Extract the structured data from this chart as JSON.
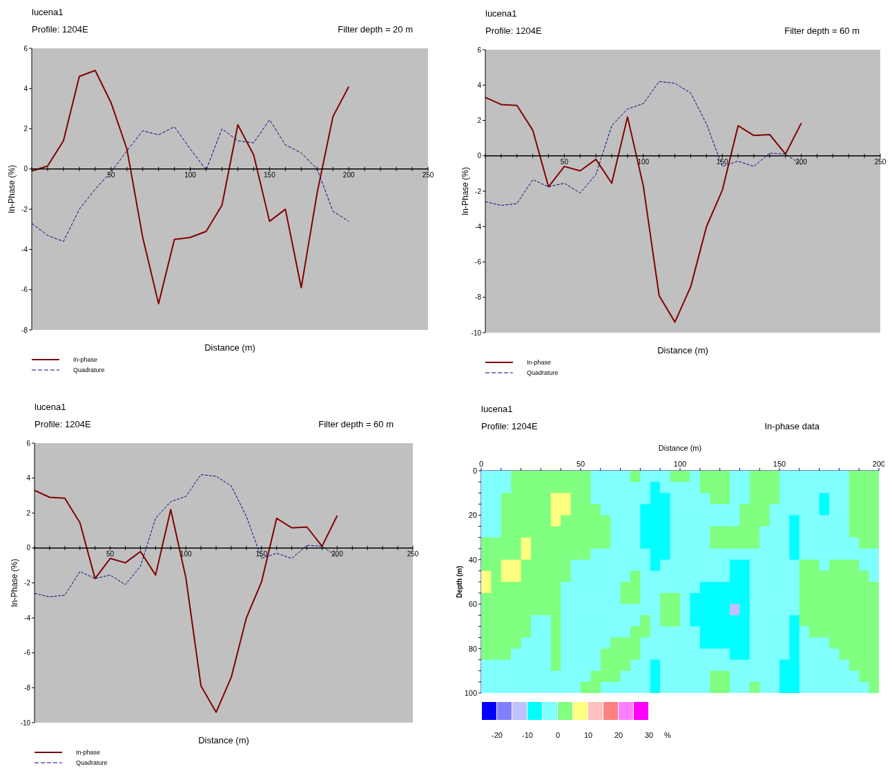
{
  "chart_data": [
    {
      "type": "line",
      "title": "lucena1",
      "subtitle": "Profile: 1204E",
      "annotations": [
        "Filter depth = 20 m"
      ],
      "xlabel": "Distance (m)",
      "ylabel": "In-Phase (%)",
      "legend": "bottom left",
      "x": [
        0,
        10,
        20,
        30,
        40,
        50,
        60,
        70,
        80,
        90,
        100,
        110,
        120,
        130,
        140,
        150,
        160,
        170,
        180,
        190,
        200
      ],
      "series": [
        {
          "name": "In-phase",
          "color": "#800000",
          "line_style": "solid",
          "values": [
            -0.1,
            0.15,
            1.4,
            4.6,
            4.9,
            3.3,
            1.0,
            -3.4,
            -6.7,
            -3.5,
            -3.4,
            -3.1,
            -1.8,
            2.2,
            0.7,
            -2.6,
            -2.0,
            -5.9,
            -1.2,
            2.6,
            4.1
          ]
        },
        {
          "name": "Quadrature",
          "color": "#000080",
          "line_style": "dashed",
          "values": [
            -2.7,
            -3.3,
            -3.6,
            -2.0,
            -1.0,
            -0.15,
            0.9,
            1.9,
            1.7,
            2.1,
            1.0,
            -0.05,
            2.0,
            1.4,
            1.3,
            2.45,
            1.2,
            0.8,
            0.0,
            -2.1,
            -2.6
          ]
        }
      ],
      "xlim": [
        0,
        250
      ],
      "xticks": [
        {
          "value": 0,
          "label": null
        },
        {
          "value": 10,
          "label": null
        },
        {
          "value": 20,
          "label": null
        },
        {
          "value": 30,
          "label": null
        },
        {
          "value": 40,
          "label": null
        },
        50,
        {
          "value": 60,
          "label": null
        },
        {
          "value": 70,
          "label": null
        },
        {
          "value": 80,
          "label": null
        },
        {
          "value": 90,
          "label": null
        },
        100,
        {
          "value": 110,
          "label": null
        },
        {
          "value": 120,
          "label": null
        },
        {
          "value": 130,
          "label": null
        },
        {
          "value": 140,
          "label": null
        },
        150,
        {
          "value": 160,
          "label": null
        },
        {
          "value": 170,
          "label": null
        },
        {
          "value": 180,
          "label": null
        },
        {
          "value": 190,
          "label": null
        },
        200,
        {
          "value": 210,
          "label": null
        },
        {
          "value": 220,
          "label": null
        },
        {
          "value": 230,
          "label": null
        },
        {
          "value": 240,
          "label": null
        },
        250
      ],
      "ylim": [
        -8,
        6
      ],
      "yticks": [
        -8,
        -6,
        -4,
        -2,
        0,
        2,
        4,
        6
      ]
    },
    {
      "type": "line",
      "title": "lucena1",
      "subtitle": "Profile: 1204E",
      "annotations": [
        "Filter depth = 60 m"
      ],
      "xlabel": "Distance (m)",
      "ylabel": "In-Phase (%)",
      "legend": "bottom left",
      "x": [
        0,
        10,
        20,
        30,
        40,
        50,
        60,
        70,
        80,
        90,
        100,
        110,
        120,
        130,
        140,
        150,
        160,
        170,
        180,
        190,
        200
      ],
      "series": [
        {
          "name": "In-phase",
          "color": "#800000",
          "line_style": "solid",
          "values": [
            3.3,
            2.9,
            2.85,
            1.45,
            -1.75,
            -0.6,
            -0.85,
            -0.2,
            -1.55,
            2.2,
            -1.7,
            -7.9,
            -9.4,
            -7.4,
            -4.0,
            -1.95,
            1.7,
            1.15,
            1.2,
            0.1,
            1.85
          ]
        },
        {
          "name": "Quadrature",
          "color": "#000080",
          "line_style": "dashed",
          "values": [
            -2.6,
            -2.8,
            -2.7,
            -1.35,
            -1.75,
            -1.55,
            -2.1,
            -1.05,
            1.7,
            2.65,
            2.95,
            4.2,
            4.1,
            3.55,
            1.8,
            -0.6,
            -0.3,
            -0.6,
            0.15,
            0.1,
            -0.5
          ]
        }
      ],
      "xlim": [
        0,
        250
      ],
      "xticks": [
        {
          "value": 0,
          "label": null
        },
        {
          "value": 10,
          "label": null
        },
        {
          "value": 20,
          "label": null
        },
        {
          "value": 30,
          "label": null
        },
        {
          "value": 40,
          "label": null
        },
        50,
        {
          "value": 60,
          "label": null
        },
        {
          "value": 70,
          "label": null
        },
        {
          "value": 80,
          "label": null
        },
        {
          "value": 90,
          "label": null
        },
        100,
        {
          "value": 110,
          "label": null
        },
        {
          "value": 120,
          "label": null
        },
        {
          "value": 130,
          "label": null
        },
        {
          "value": 140,
          "label": null
        },
        150,
        {
          "value": 160,
          "label": null
        },
        {
          "value": 170,
          "label": null
        },
        {
          "value": 180,
          "label": null
        },
        {
          "value": 190,
          "label": null
        },
        200,
        {
          "value": 210,
          "label": null
        },
        {
          "value": 220,
          "label": null
        },
        {
          "value": 230,
          "label": null
        },
        {
          "value": 240,
          "label": null
        },
        250
      ],
      "ylim": [
        -10,
        6
      ],
      "yticks": [
        -10,
        -8,
        -6,
        -4,
        -2,
        0,
        2,
        4,
        6
      ]
    },
    {
      "type": "line",
      "title": "lucena1",
      "subtitle": "Profile: 1204E",
      "annotations": [
        "Filter depth = 60 m"
      ],
      "xlabel": "Distance (m)",
      "ylabel": "In-Phase (%)",
      "legend": "bottom left",
      "x": [
        0,
        10,
        20,
        30,
        40,
        50,
        60,
        70,
        80,
        90,
        100,
        110,
        120,
        130,
        140,
        150,
        160,
        170,
        180,
        190,
        200
      ],
      "series": [
        {
          "name": "In-phase",
          "color": "#800000",
          "line_style": "solid",
          "values": [
            3.3,
            2.9,
            2.85,
            1.45,
            -1.75,
            -0.6,
            -0.85,
            -0.2,
            -1.55,
            2.2,
            -1.7,
            -7.9,
            -9.4,
            -7.4,
            -4.0,
            -1.95,
            1.7,
            1.15,
            1.2,
            0.1,
            1.85
          ]
        },
        {
          "name": "Quadrature",
          "color": "#000080",
          "line_style": "dashed",
          "values": [
            -2.6,
            -2.8,
            -2.7,
            -1.35,
            -1.75,
            -1.55,
            -2.1,
            -1.05,
            1.7,
            2.65,
            2.95,
            4.2,
            4.1,
            3.55,
            1.8,
            -0.6,
            -0.3,
            -0.6,
            0.15,
            0.1,
            -0.5
          ]
        }
      ],
      "xlim": [
        0,
        250
      ],
      "xticks": [
        {
          "value": 0,
          "label": null
        },
        {
          "value": 10,
          "label": null
        },
        {
          "value": 20,
          "label": null
        },
        {
          "value": 30,
          "label": null
        },
        {
          "value": 40,
          "label": null
        },
        50,
        {
          "value": 60,
          "label": null
        },
        {
          "value": 70,
          "label": null
        },
        {
          "value": 80,
          "label": null
        },
        {
          "value": 90,
          "label": null
        },
        100,
        {
          "value": 110,
          "label": null
        },
        {
          "value": 120,
          "label": null
        },
        {
          "value": 130,
          "label": null
        },
        {
          "value": 140,
          "label": null
        },
        150,
        {
          "value": 160,
          "label": null
        },
        {
          "value": 170,
          "label": null
        },
        {
          "value": 180,
          "label": null
        },
        {
          "value": 190,
          "label": null
        },
        200,
        {
          "value": 210,
          "label": null
        },
        {
          "value": 220,
          "label": null
        },
        {
          "value": 230,
          "label": null
        },
        {
          "value": 240,
          "label": null
        },
        250
      ],
      "ylim": [
        -10,
        6
      ],
      "yticks": [
        -10,
        -8,
        -6,
        -4,
        -2,
        0,
        2,
        4,
        6
      ]
    },
    {
      "type": "heatmap",
      "title": "lucena1",
      "subtitle": "Profile: 1204E",
      "annotations": [
        "In-phase data"
      ],
      "xlabel": "Distance (m)",
      "ylabel": "Depth (m)",
      "clabel": "%",
      "xlim": [
        0,
        200
      ],
      "xticks": [
        0,
        {
          "value": 10,
          "label": null
        },
        {
          "value": 20,
          "label": null
        },
        {
          "value": 30,
          "label": null
        },
        {
          "value": 40,
          "label": null
        },
        50,
        {
          "value": 60,
          "label": null
        },
        {
          "value": 70,
          "label": null
        },
        {
          "value": 80,
          "label": null
        },
        {
          "value": 90,
          "label": null
        },
        100,
        {
          "value": 110,
          "label": null
        },
        {
          "value": 120,
          "label": null
        },
        {
          "value": 130,
          "label": null
        },
        {
          "value": 140,
          "label": null
        },
        150,
        {
          "value": 160,
          "label": null
        },
        {
          "value": 170,
          "label": null
        },
        {
          "value": 180,
          "label": null
        },
        {
          "value": 190,
          "label": null
        },
        200
      ],
      "ylim": [
        100,
        0
      ],
      "yticks": [
        0,
        {
          "value": 5,
          "label": null
        },
        {
          "value": 10,
          "label": null
        },
        {
          "value": 15,
          "label": null
        },
        20,
        {
          "value": 25,
          "label": null
        },
        {
          "value": 30,
          "label": null
        },
        {
          "value": 35,
          "label": null
        },
        40,
        {
          "value": 45,
          "label": null
        },
        {
          "value": 50,
          "label": null
        },
        {
          "value": 55,
          "label": null
        },
        60,
        {
          "value": 65,
          "label": null
        },
        {
          "value": 70,
          "label": null
        },
        {
          "value": 75,
          "label": null
        },
        80,
        {
          "value": 85,
          "label": null
        },
        {
          "value": 90,
          "label": null
        },
        {
          "value": 95,
          "label": null
        },
        100
      ],
      "clim": [
        -25,
        30
      ],
      "cticks": [
        -20,
        -10,
        0,
        10,
        20,
        30
      ],
      "colors": [
        "#0000ff",
        "#8080ff",
        "#c0c0ff",
        "#00ffff",
        "#80ffff",
        "#80ff80",
        "#ffff80",
        "#ffc0c0",
        "#ff8080",
        "#ff80ff",
        "#ff00ff"
      ],
      "cells": [
        [
          -2.5,
          -2.5,
          -2.5,
          2.5,
          2.5,
          2.5,
          2.5,
          2.5,
          2.5,
          2.5,
          2.5,
          -2.5,
          -2.5,
          -2.5,
          -2.5,
          2.5,
          -2.5,
          -2.5,
          -2.5,
          2.5,
          2.5,
          -2.5,
          2.5,
          2.5,
          2.5,
          -2.5,
          -2.5,
          2.5,
          2.5,
          2.5,
          -2.5,
          -2.5,
          -2.5,
          -2.5,
          -2.5,
          -2.5,
          -2.5,
          2.5,
          2.5,
          2.5
        ],
        [
          -2.5,
          -2.5,
          -2.5,
          2.5,
          2.5,
          2.5,
          2.5,
          2.5,
          2.5,
          2.5,
          2.5,
          -2.5,
          -2.5,
          -2.5,
          -2.5,
          -2.5,
          -2.5,
          -7.5,
          -2.5,
          -2.5,
          -2.5,
          -2.5,
          2.5,
          2.5,
          2.5,
          -2.5,
          -2.5,
          2.5,
          2.5,
          2.5,
          -2.5,
          -2.5,
          -2.5,
          -2.5,
          -2.5,
          -2.5,
          -2.5,
          2.5,
          2.5,
          2.5
        ],
        [
          -2.5,
          -2.5,
          2.5,
          2.5,
          2.5,
          2.5,
          2.5,
          7.5,
          7.5,
          2.5,
          2.5,
          -2.5,
          -2.5,
          -2.5,
          -2.5,
          -2.5,
          -2.5,
          -7.5,
          -7.5,
          -2.5,
          -2.5,
          -2.5,
          -2.5,
          2.5,
          2.5,
          -2.5,
          -2.5,
          2.5,
          2.5,
          2.5,
          -2.5,
          -2.5,
          -2.5,
          -2.5,
          -7.5,
          -2.5,
          -2.5,
          2.5,
          2.5,
          2.5
        ],
        [
          -2.5,
          -2.5,
          2.5,
          2.5,
          2.5,
          2.5,
          2.5,
          7.5,
          7.5,
          2.5,
          2.5,
          2.5,
          -2.5,
          -2.5,
          -2.5,
          -2.5,
          -7.5,
          -7.5,
          -7.5,
          -2.5,
          -2.5,
          -2.5,
          -2.5,
          -2.5,
          -2.5,
          -2.5,
          2.5,
          2.5,
          2.5,
          -2.5,
          -2.5,
          -2.5,
          -2.5,
          -2.5,
          -7.5,
          -2.5,
          -2.5,
          2.5,
          2.5,
          2.5
        ],
        [
          -2.5,
          -2.5,
          2.5,
          2.5,
          2.5,
          2.5,
          2.5,
          7.5,
          2.5,
          2.5,
          2.5,
          2.5,
          2.5,
          -2.5,
          -2.5,
          -2.5,
          -7.5,
          -7.5,
          -7.5,
          -2.5,
          -2.5,
          -2.5,
          -2.5,
          -2.5,
          -2.5,
          -2.5,
          2.5,
          2.5,
          2.5,
          -2.5,
          -2.5,
          -7.5,
          -2.5,
          -2.5,
          -2.5,
          -2.5,
          -2.5,
          2.5,
          2.5,
          2.5
        ],
        [
          -2.5,
          -2.5,
          2.5,
          2.5,
          2.5,
          2.5,
          2.5,
          2.5,
          2.5,
          2.5,
          2.5,
          2.5,
          2.5,
          -2.5,
          -2.5,
          -2.5,
          -7.5,
          -7.5,
          -7.5,
          -2.5,
          -2.5,
          -2.5,
          -2.5,
          2.5,
          2.5,
          2.5,
          2.5,
          2.5,
          -2.5,
          -2.5,
          -2.5,
          -7.5,
          -2.5,
          -2.5,
          -2.5,
          -2.5,
          -2.5,
          2.5,
          2.5,
          2.5
        ],
        [
          2.5,
          2.5,
          2.5,
          2.5,
          7.5,
          2.5,
          2.5,
          2.5,
          2.5,
          2.5,
          2.5,
          2.5,
          2.5,
          -2.5,
          -2.5,
          -2.5,
          -7.5,
          -7.5,
          -7.5,
          -2.5,
          -2.5,
          -2.5,
          -2.5,
          2.5,
          2.5,
          2.5,
          2.5,
          2.5,
          -2.5,
          -2.5,
          -2.5,
          -7.5,
          -2.5,
          -2.5,
          -2.5,
          -2.5,
          -2.5,
          -2.5,
          2.5,
          2.5
        ],
        [
          2.5,
          2.5,
          2.5,
          2.5,
          7.5,
          2.5,
          2.5,
          2.5,
          2.5,
          2.5,
          2.5,
          -2.5,
          -2.5,
          -2.5,
          -2.5,
          -2.5,
          -2.5,
          -7.5,
          -7.5,
          -2.5,
          -2.5,
          -2.5,
          -2.5,
          -2.5,
          -2.5,
          -2.5,
          -2.5,
          -2.5,
          -2.5,
          -2.5,
          -2.5,
          -7.5,
          -2.5,
          -2.5,
          -2.5,
          -2.5,
          -2.5,
          -2.5,
          -2.5,
          -2.5
        ],
        [
          2.5,
          2.5,
          7.5,
          7.5,
          2.5,
          2.5,
          2.5,
          2.5,
          2.5,
          -2.5,
          -2.5,
          -2.5,
          -2.5,
          -2.5,
          -2.5,
          -2.5,
          -2.5,
          -7.5,
          -2.5,
          -2.5,
          -2.5,
          -2.5,
          -2.5,
          -2.5,
          -2.5,
          -7.5,
          -7.5,
          -2.5,
          -2.5,
          -2.5,
          -2.5,
          -2.5,
          2.5,
          2.5,
          -2.5,
          2.5,
          2.5,
          2.5,
          -2.5,
          -2.5
        ],
        [
          7.5,
          2.5,
          7.5,
          7.5,
          2.5,
          2.5,
          2.5,
          2.5,
          2.5,
          -2.5,
          -2.5,
          -2.5,
          -2.5,
          -2.5,
          -2.5,
          2.5,
          -2.5,
          -2.5,
          -2.5,
          -2.5,
          -2.5,
          -2.5,
          -2.5,
          -2.5,
          -2.5,
          -7.5,
          -7.5,
          -2.5,
          -2.5,
          -2.5,
          -2.5,
          -2.5,
          2.5,
          2.5,
          2.5,
          2.5,
          2.5,
          2.5,
          2.5,
          -2.5
        ],
        [
          7.5,
          2.5,
          2.5,
          2.5,
          2.5,
          2.5,
          2.5,
          2.5,
          -2.5,
          -2.5,
          -2.5,
          -2.5,
          -2.5,
          -2.5,
          2.5,
          2.5,
          -2.5,
          -2.5,
          -2.5,
          -2.5,
          -2.5,
          -2.5,
          -7.5,
          -7.5,
          -7.5,
          -7.5,
          -7.5,
          -2.5,
          -2.5,
          -2.5,
          -2.5,
          -2.5,
          2.5,
          2.5,
          2.5,
          2.5,
          2.5,
          2.5,
          2.5,
          2.5
        ],
        [
          2.5,
          2.5,
          2.5,
          2.5,
          2.5,
          2.5,
          2.5,
          2.5,
          -2.5,
          -2.5,
          -2.5,
          -2.5,
          -2.5,
          -2.5,
          2.5,
          2.5,
          -2.5,
          -2.5,
          2.5,
          2.5,
          -2.5,
          -7.5,
          -7.5,
          -7.5,
          -7.5,
          -7.5,
          -7.5,
          -2.5,
          -2.5,
          -2.5,
          -2.5,
          -2.5,
          2.5,
          2.5,
          2.5,
          2.5,
          2.5,
          2.5,
          2.5,
          2.5
        ],
        [
          2.5,
          2.5,
          2.5,
          2.5,
          2.5,
          2.5,
          2.5,
          2.5,
          -2.5,
          -2.5,
          -2.5,
          -2.5,
          -2.5,
          -2.5,
          -2.5,
          -2.5,
          -2.5,
          -2.5,
          2.5,
          2.5,
          -2.5,
          -7.5,
          -7.5,
          -7.5,
          -7.5,
          -12.5,
          -7.5,
          -2.5,
          -2.5,
          -2.5,
          -2.5,
          -2.5,
          2.5,
          2.5,
          2.5,
          2.5,
          2.5,
          2.5,
          2.5,
          2.5
        ],
        [
          2.5,
          2.5,
          2.5,
          2.5,
          2.5,
          -2.5,
          -2.5,
          2.5,
          -2.5,
          -2.5,
          -2.5,
          -2.5,
          -2.5,
          -2.5,
          -2.5,
          -2.5,
          2.5,
          -2.5,
          2.5,
          2.5,
          -2.5,
          -7.5,
          -7.5,
          -7.5,
          -7.5,
          -7.5,
          -7.5,
          -2.5,
          -2.5,
          -2.5,
          -2.5,
          -7.5,
          2.5,
          2.5,
          2.5,
          2.5,
          2.5,
          2.5,
          2.5,
          2.5
        ],
        [
          2.5,
          2.5,
          2.5,
          2.5,
          2.5,
          -2.5,
          -2.5,
          2.5,
          -2.5,
          -2.5,
          -2.5,
          -2.5,
          -2.5,
          -2.5,
          -2.5,
          2.5,
          2.5,
          -2.5,
          -2.5,
          -2.5,
          -2.5,
          -2.5,
          -7.5,
          -7.5,
          -7.5,
          -7.5,
          -7.5,
          -2.5,
          -2.5,
          -2.5,
          -2.5,
          -7.5,
          -2.5,
          2.5,
          2.5,
          2.5,
          2.5,
          2.5,
          2.5,
          2.5
        ],
        [
          2.5,
          2.5,
          2.5,
          2.5,
          -2.5,
          -2.5,
          -2.5,
          2.5,
          -2.5,
          -2.5,
          -2.5,
          -2.5,
          -2.5,
          2.5,
          2.5,
          2.5,
          -2.5,
          -2.5,
          -2.5,
          -2.5,
          -2.5,
          -2.5,
          -7.5,
          -7.5,
          -7.5,
          -7.5,
          -7.5,
          -2.5,
          -2.5,
          -2.5,
          -2.5,
          -7.5,
          -2.5,
          -2.5,
          -2.5,
          2.5,
          2.5,
          2.5,
          2.5,
          2.5
        ],
        [
          2.5,
          2.5,
          2.5,
          -2.5,
          -2.5,
          -2.5,
          -2.5,
          2.5,
          -2.5,
          -2.5,
          -2.5,
          -2.5,
          2.5,
          2.5,
          2.5,
          2.5,
          -2.5,
          -2.5,
          -2.5,
          -2.5,
          -2.5,
          -2.5,
          -2.5,
          -2.5,
          -2.5,
          -7.5,
          -7.5,
          -2.5,
          -2.5,
          -2.5,
          -2.5,
          -7.5,
          -2.5,
          -2.5,
          -2.5,
          -2.5,
          2.5,
          2.5,
          2.5,
          2.5
        ],
        [
          -2.5,
          -2.5,
          -2.5,
          -2.5,
          -2.5,
          -2.5,
          -2.5,
          2.5,
          -2.5,
          -2.5,
          -2.5,
          -2.5,
          2.5,
          2.5,
          2.5,
          -2.5,
          -2.5,
          -7.5,
          -2.5,
          -2.5,
          -2.5,
          -2.5,
          -2.5,
          -2.5,
          -2.5,
          -2.5,
          -2.5,
          -2.5,
          -2.5,
          -2.5,
          -7.5,
          -7.5,
          -2.5,
          -2.5,
          -2.5,
          -2.5,
          -2.5,
          2.5,
          2.5,
          2.5
        ],
        [
          -2.5,
          -2.5,
          -2.5,
          -2.5,
          -2.5,
          -2.5,
          -2.5,
          -2.5,
          -2.5,
          -2.5,
          -2.5,
          2.5,
          2.5,
          2.5,
          -2.5,
          -2.5,
          -2.5,
          -7.5,
          -2.5,
          -2.5,
          -2.5,
          -2.5,
          -2.5,
          2.5,
          2.5,
          -2.5,
          -2.5,
          -2.5,
          -2.5,
          -2.5,
          -7.5,
          -7.5,
          -2.5,
          -2.5,
          -2.5,
          -2.5,
          -2.5,
          -2.5,
          2.5,
          2.5
        ],
        [
          -2.5,
          -2.5,
          -2.5,
          -2.5,
          -2.5,
          -2.5,
          -2.5,
          -2.5,
          -2.5,
          -2.5,
          2.5,
          2.5,
          -2.5,
          -2.5,
          -2.5,
          -2.5,
          -2.5,
          -7.5,
          -2.5,
          -2.5,
          -2.5,
          -2.5,
          -2.5,
          2.5,
          2.5,
          -2.5,
          -2.5,
          2.5,
          -2.5,
          -2.5,
          -7.5,
          -7.5,
          -2.5,
          -2.5,
          -2.5,
          -2.5,
          -2.5,
          -2.5,
          -2.5,
          2.5
        ]
      ]
    }
  ]
}
